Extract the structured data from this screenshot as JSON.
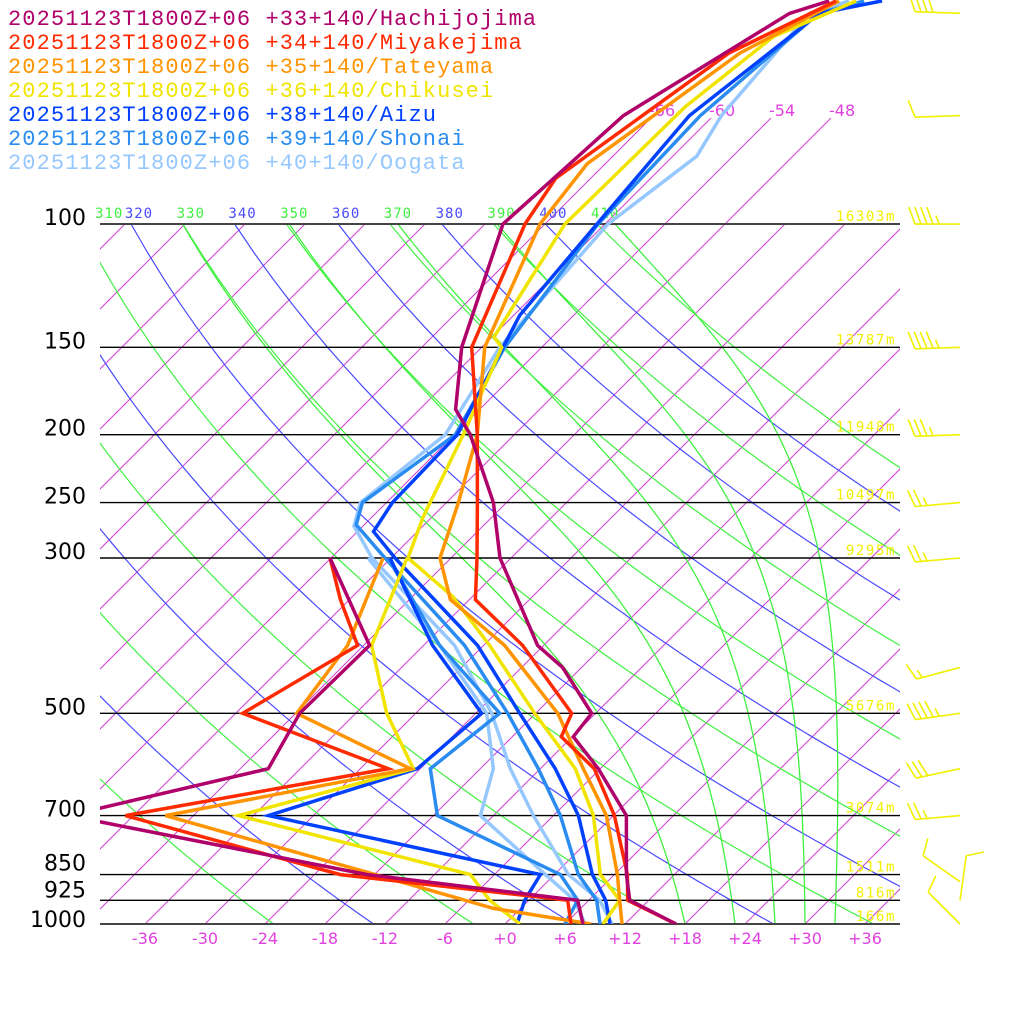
{
  "legend": [
    {
      "label": "20251123T1800Z+06 +33+140/Hachijojima",
      "color": "#b0006a"
    },
    {
      "label": "20251123T1800Z+06 +34+140/Miyakejima",
      "color": "#ff2a00"
    },
    {
      "label": "20251123T1800Z+06 +35+140/Tateyama",
      "color": "#ff9400"
    },
    {
      "label": "20251123T1800Z+06 +36+140/Chikusei",
      "color": "#f0e400"
    },
    {
      "label": "20251123T1800Z+06 +38+140/Aizu",
      "color": "#0040ff"
    },
    {
      "label": "20251123T1800Z+06 +39+140/Shonai",
      "color": "#2a8cf0"
    },
    {
      "label": "20251123T1800Z+06 +40+140/Oogata",
      "color": "#96c8ff"
    }
  ],
  "pressure_levels": [
    {
      "p": 100,
      "label": "100",
      "height": "16303m"
    },
    {
      "p": 150,
      "label": "150",
      "height": "13787m"
    },
    {
      "p": 200,
      "label": "200",
      "height": "11948m"
    },
    {
      "p": 250,
      "label": "250",
      "height": "10497m"
    },
    {
      "p": 300,
      "label": "300",
      "height": "9295m"
    },
    {
      "p": 500,
      "label": "500",
      "height": "5676m"
    },
    {
      "p": 700,
      "label": "700",
      "height": "3074m"
    },
    {
      "p": 850,
      "label": "850",
      "height": "1511m"
    },
    {
      "p": 925,
      "label": "925",
      "height": "816m"
    },
    {
      "p": 1000,
      "label": "1000",
      "height": "166m"
    }
  ],
  "colors": {
    "isotherm": "#d040d0",
    "dry_adiabat_a": "#4a4aff",
    "dry_adiabat_b": "#40f040",
    "moist_adiabat": "#40f040",
    "wind_barb": "#f0f000",
    "isobar": "#000000"
  },
  "chart_data": {
    "type": "line",
    "subtype": "skew-T log-p sounding",
    "title": "",
    "xlabel": "",
    "ylabel": "",
    "x_unit": "degC",
    "y_unit": "hPa",
    "ylim": [
      1000,
      48
    ],
    "x_ticks": [
      {
        "v": -36,
        "t": "-36"
      },
      {
        "v": -30,
        "t": "-30"
      },
      {
        "v": -24,
        "t": "-24"
      },
      {
        "v": -18,
        "t": "-18"
      },
      {
        "v": -12,
        "t": "-12"
      },
      {
        "v": -6,
        "t": "-6"
      },
      {
        "v": 0,
        "t": "+0"
      },
      {
        "v": 6,
        "t": "+6"
      },
      {
        "v": 12,
        "t": "+12"
      },
      {
        "v": 18,
        "t": "+18"
      },
      {
        "v": 24,
        "t": "+24"
      },
      {
        "v": 30,
        "t": "+30"
      },
      {
        "v": 36,
        "t": "+36"
      }
    ],
    "isotherm_step": 6,
    "isotherm_labels": [
      {
        "v": -66,
        "t": "-66"
      },
      {
        "v": -60,
        "t": "-60"
      },
      {
        "v": -54,
        "t": "-54"
      },
      {
        "v": -48,
        "t": "-48"
      }
    ],
    "dry_adiabats_K": [
      250,
      260,
      270,
      280,
      290,
      300,
      310,
      320,
      330,
      340,
      350,
      360,
      370,
      380,
      390,
      400,
      410
    ],
    "dry_adiabat_labels": [
      {
        "v": 310,
        "t": "310"
      },
      {
        "v": 320,
        "t": "320"
      },
      {
        "v": 330,
        "t": "330"
      },
      {
        "v": 340,
        "t": "340"
      },
      {
        "v": 350,
        "t": "350"
      },
      {
        "v": 360,
        "t": "360"
      },
      {
        "v": 370,
        "t": "370"
      },
      {
        "v": 380,
        "t": "380"
      },
      {
        "v": 390,
        "t": "390"
      },
      {
        "v": 400,
        "t": "400"
      },
      {
        "v": 410,
        "t": "410"
      }
    ],
    "moist_adiabats_start_C_at_1000": [
      18,
      23,
      27,
      30,
      33
    ],
    "series": [
      {
        "name": "Hachijojima",
        "temperature": [
          [
            1000,
            17.1
          ],
          [
            925,
            10.1
          ],
          [
            850,
            7.2
          ],
          [
            700,
            1.3
          ],
          [
            600,
            -6.2
          ],
          [
            540,
            -11.9
          ],
          [
            500,
            -12.4
          ],
          [
            430,
            -19.9
          ],
          [
            400,
            -24.6
          ],
          [
            300,
            -37.1
          ],
          [
            250,
            -43.3
          ],
          [
            200,
            -52.4
          ],
          [
            184,
            -56.4
          ],
          [
            150,
            -62.0
          ],
          [
            100,
            -70.2
          ],
          [
            70,
            -69.0
          ],
          [
            50,
            -62.6
          ],
          [
            48,
            -59.9
          ]
        ],
        "dewpoint": [
          [
            1000,
            7.8
          ],
          [
            925,
            4.9
          ],
          [
            850,
            -18.7
          ],
          [
            700,
            -54.5
          ],
          [
            600,
            -39.2
          ],
          [
            500,
            -41.6
          ],
          [
            400,
            -41.4
          ],
          [
            300,
            -54.1
          ]
        ]
      },
      {
        "name": "Miyakejima",
        "temperature": [
          [
            1000,
            17.1
          ],
          [
            925,
            9.9
          ],
          [
            850,
            7.3
          ],
          [
            700,
            0.1
          ],
          [
            600,
            -6.6
          ],
          [
            540,
            -13.1
          ],
          [
            500,
            -14.4
          ],
          [
            400,
            -26.1
          ],
          [
            344,
            -35.4
          ],
          [
            300,
            -39.4
          ],
          [
            250,
            -44.9
          ],
          [
            200,
            -51.7
          ],
          [
            150,
            -61.0
          ],
          [
            100,
            -68.0
          ],
          [
            86,
            -69.5
          ],
          [
            57,
            -64.7
          ],
          [
            48,
            -59.2
          ]
        ],
        "dewpoint": [
          [
            1000,
            6.6
          ],
          [
            925,
            3.9
          ],
          [
            850,
            -21.4
          ],
          [
            700,
            -48.8
          ],
          [
            600,
            -27.2
          ],
          [
            500,
            -47.3
          ],
          [
            400,
            -42.6
          ],
          [
            344,
            -48.9
          ],
          [
            300,
            -54.1
          ]
        ]
      },
      {
        "name": "Tateyama",
        "temperature": [
          [
            1000,
            11.7
          ],
          [
            925,
            9.1
          ],
          [
            850,
            6.3
          ],
          [
            700,
            -0.7
          ],
          [
            600,
            -7.7
          ],
          [
            500,
            -15.8
          ],
          [
            400,
            -27.9
          ],
          [
            344,
            -37.9
          ],
          [
            300,
            -43.1
          ],
          [
            250,
            -46.8
          ],
          [
            200,
            -51.7
          ],
          [
            150,
            -59.7
          ],
          [
            100,
            -66.5
          ],
          [
            82,
            -67.8
          ],
          [
            57,
            -63.6
          ],
          [
            48,
            -58.9
          ]
        ],
        "dewpoint": [
          [
            1000,
            8.6
          ],
          [
            950,
            -2.7
          ],
          [
            850,
            -17.9
          ],
          [
            700,
            -44.8
          ],
          [
            600,
            -25.0
          ],
          [
            500,
            -41.9
          ],
          [
            400,
            -43.6
          ],
          [
            300,
            -48.8
          ]
        ]
      },
      {
        "name": "Chikusei",
        "temperature": [
          [
            1000,
            9.8
          ],
          [
            925,
            9.1
          ],
          [
            850,
            4.6
          ],
          [
            700,
            -2.0
          ],
          [
            600,
            -8.5
          ],
          [
            500,
            -18.1
          ],
          [
            400,
            -29.4
          ],
          [
            341,
            -37.9
          ],
          [
            300,
            -46.3
          ],
          [
            262,
            -48.9
          ],
          [
            200,
            -53.1
          ],
          [
            150,
            -58.0
          ],
          [
            145,
            -59.8
          ],
          [
            100,
            -64.0
          ],
          [
            68,
            -63.7
          ],
          [
            54,
            -61.9
          ],
          [
            48,
            -57.2
          ]
        ],
        "dewpoint": [
          [
            1000,
            1.5
          ],
          [
            925,
            -3.9
          ],
          [
            850,
            -8.4
          ],
          [
            700,
            -37.5
          ],
          [
            600,
            -24.7
          ],
          [
            500,
            -32.9
          ],
          [
            400,
            -41.2
          ],
          [
            300,
            -46.4
          ]
        ]
      },
      {
        "name": "Aizu",
        "temperature": [
          [
            1000,
            10.5
          ],
          [
            925,
            7.7
          ],
          [
            850,
            3.8
          ],
          [
            700,
            -3.5
          ],
          [
            600,
            -10.5
          ],
          [
            500,
            -19.6
          ],
          [
            400,
            -30.6
          ],
          [
            300,
            -47.6
          ],
          [
            275,
            -52.4
          ],
          [
            250,
            -53.4
          ],
          [
            200,
            -53.7
          ],
          [
            135,
            -59.4
          ],
          [
            100,
            -60.8
          ],
          [
            70,
            -62.4
          ],
          [
            50,
            -59.6
          ],
          [
            48,
            -54.6
          ]
        ],
        "dewpoint": [
          [
            1000,
            1.2
          ],
          [
            925,
            -0.4
          ],
          [
            850,
            -1.4
          ],
          [
            700,
            -34.5
          ],
          [
            600,
            -24.3
          ],
          [
            500,
            -23.4
          ],
          [
            400,
            -35.1
          ],
          [
            300,
            -48.1
          ]
        ]
      },
      {
        "name": "Shonai",
        "temperature": [
          [
            1000,
            9.5
          ],
          [
            925,
            6.8
          ],
          [
            850,
            2.4
          ],
          [
            700,
            -5.3
          ],
          [
            600,
            -12.2
          ],
          [
            500,
            -20.8
          ],
          [
            400,
            -31.9
          ],
          [
            300,
            -48.6
          ],
          [
            269,
            -54.8
          ],
          [
            250,
            -56.4
          ],
          [
            200,
            -53.9
          ],
          [
            150,
            -57.7
          ],
          [
            100,
            -60.7
          ],
          [
            70,
            -61.3
          ],
          [
            50,
            -59.7
          ],
          [
            48,
            -56.4
          ]
        ],
        "dewpoint": [
          [
            1000,
            6.0
          ],
          [
            925,
            4.9
          ],
          [
            850,
            0.6
          ],
          [
            700,
            -17.6
          ],
          [
            600,
            -23.0
          ],
          [
            500,
            -21.6
          ],
          [
            400,
            -34.4
          ],
          [
            300,
            -48.3
          ]
        ]
      },
      {
        "name": "Oogata",
        "temperature": [
          [
            1000,
            10.7
          ],
          [
            925,
            7.1
          ],
          [
            850,
            1.4
          ],
          [
            700,
            -8.0
          ],
          [
            600,
            -15.0
          ],
          [
            500,
            -22.4
          ],
          [
            400,
            -32.9
          ],
          [
            300,
            -49.9
          ],
          [
            270,
            -54.9
          ],
          [
            250,
            -56.6
          ],
          [
            200,
            -54.9
          ],
          [
            150,
            -58.2
          ],
          [
            100,
            -59.7
          ],
          [
            80,
            -57.6
          ],
          [
            70,
            -59.2
          ],
          [
            50,
            -60.6
          ],
          [
            48,
            -57.9
          ]
        ],
        "dewpoint": [
          [
            1000,
            8.0
          ],
          [
            925,
            4.6
          ],
          [
            850,
            -0.9
          ],
          [
            700,
            -13.3
          ],
          [
            600,
            -16.7
          ],
          [
            500,
            -22.9
          ],
          [
            400,
            -34.4
          ],
          [
            300,
            -50.3
          ]
        ]
      }
    ],
    "wind_barbs_kt": [
      {
        "p": 50,
        "dir": 272,
        "speed": 40
      },
      {
        "p": 70,
        "dir": 268,
        "speed": 10
      },
      {
        "p": 100,
        "dir": 270,
        "speed": 45
      },
      {
        "p": 150,
        "dir": 268,
        "speed": 45
      },
      {
        "p": 200,
        "dir": 268,
        "speed": 35
      },
      {
        "p": 250,
        "dir": 265,
        "speed": 25
      },
      {
        "p": 300,
        "dir": 265,
        "speed": 25
      },
      {
        "p": 430,
        "dir": 255,
        "speed": 15
      },
      {
        "p": 500,
        "dir": 262,
        "speed": 45
      },
      {
        "p": 600,
        "dir": 258,
        "speed": 30
      },
      {
        "p": 700,
        "dir": 265,
        "speed": 25
      },
      {
        "p": 870,
        "dir": 305,
        "speed": 10
      },
      {
        "p": 925,
        "dir": 8,
        "speed": 10
      },
      {
        "p": 1000,
        "dir": 315,
        "speed": 10
      }
    ]
  }
}
